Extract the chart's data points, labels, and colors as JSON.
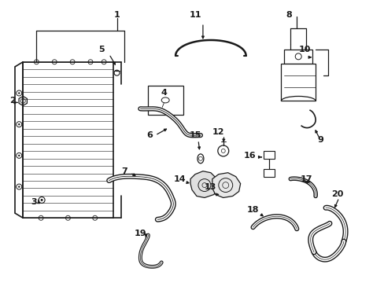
{
  "background_color": "#ffffff",
  "line_color": "#1a1a1a",
  "fig_width": 4.89,
  "fig_height": 3.6,
  "dpi": 100,
  "labels": [
    [
      "1",
      148,
      18
    ],
    [
      "2",
      15,
      128
    ],
    [
      "3",
      42,
      258
    ],
    [
      "4",
      208,
      118
    ],
    [
      "5",
      128,
      62
    ],
    [
      "6",
      190,
      172
    ],
    [
      "7",
      158,
      218
    ],
    [
      "8",
      368,
      18
    ],
    [
      "9",
      408,
      178
    ],
    [
      "10",
      388,
      62
    ],
    [
      "11",
      248,
      18
    ],
    [
      "12",
      278,
      168
    ],
    [
      "13",
      268,
      238
    ],
    [
      "14",
      228,
      228
    ],
    [
      "15",
      248,
      172
    ],
    [
      "16",
      318,
      198
    ],
    [
      "17",
      390,
      228
    ],
    [
      "18",
      322,
      268
    ],
    [
      "19",
      178,
      298
    ],
    [
      "20",
      430,
      248
    ]
  ]
}
